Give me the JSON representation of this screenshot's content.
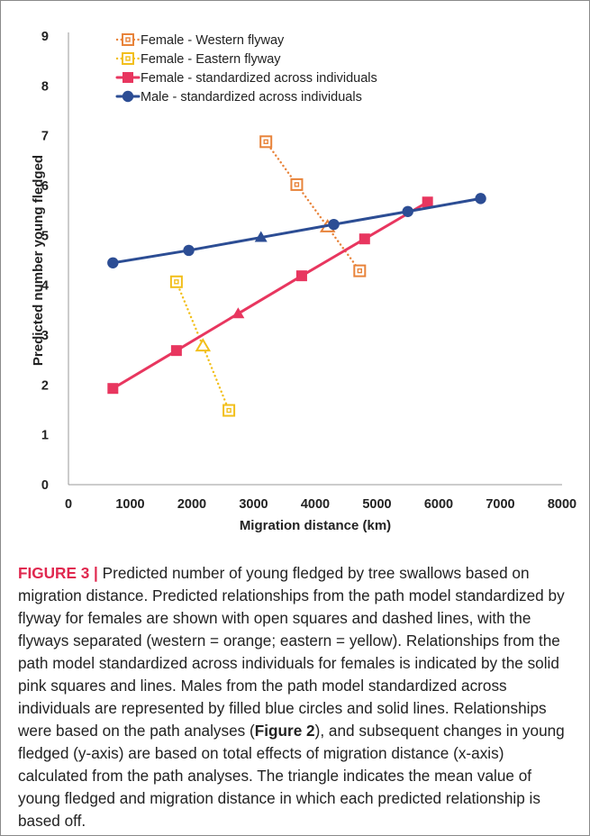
{
  "chart_data": {
    "type": "line",
    "xlabel": "Migration distance (km)",
    "ylabel": "Predicted number young fledged",
    "xlim": [
      0,
      8000
    ],
    "ylim": [
      0,
      9
    ],
    "xticks": [
      "0",
      "1000",
      "2000",
      "3000",
      "4000",
      "5000",
      "6000",
      "7000",
      "8000"
    ],
    "yticks": [
      "0",
      "1",
      "2",
      "3",
      "4",
      "5",
      "6",
      "7",
      "8",
      "9"
    ],
    "grid": false,
    "legend_position": "top-left",
    "series": [
      {
        "name": "Female - Western flyway",
        "color": "#e8833a",
        "marker": "open-square",
        "line": "dotted",
        "points": [
          {
            "x": 3200,
            "y": 6.88,
            "marker": "open-square"
          },
          {
            "x": 3700,
            "y": 6.02,
            "marker": "open-square"
          },
          {
            "x": 4200,
            "y": 5.17,
            "marker": "open-triangle"
          },
          {
            "x": 4720,
            "y": 4.29,
            "marker": "open-square"
          }
        ]
      },
      {
        "name": "Female - Eastern flyway",
        "color": "#f2bf1b",
        "marker": "open-square",
        "line": "dotted",
        "points": [
          {
            "x": 1750,
            "y": 4.07,
            "marker": "open-square"
          },
          {
            "x": 2180,
            "y": 2.78,
            "marker": "open-triangle"
          },
          {
            "x": 2600,
            "y": 1.49,
            "marker": "open-square"
          }
        ]
      },
      {
        "name": "Female - standardized across individuals",
        "color": "#e8365f",
        "marker": "filled-square",
        "line": "solid",
        "points": [
          {
            "x": 720,
            "y": 1.93,
            "marker": "filled-square"
          },
          {
            "x": 1750,
            "y": 2.69,
            "marker": "filled-square"
          },
          {
            "x": 2750,
            "y": 3.43,
            "marker": "filled-triangle"
          },
          {
            "x": 3780,
            "y": 4.19,
            "marker": "filled-square"
          },
          {
            "x": 4800,
            "y": 4.93,
            "marker": "filled-square"
          },
          {
            "x": 5820,
            "y": 5.67,
            "marker": "filled-square"
          }
        ]
      },
      {
        "name": "Male - standardized across individuals",
        "color": "#2c4d94",
        "marker": "filled-circle",
        "line": "solid",
        "points": [
          {
            "x": 720,
            "y": 4.45,
            "marker": "filled-circle"
          },
          {
            "x": 1950,
            "y": 4.7,
            "marker": "filled-circle"
          },
          {
            "x": 3120,
            "y": 4.96,
            "marker": "filled-triangle"
          },
          {
            "x": 4300,
            "y": 5.22,
            "marker": "filled-circle"
          },
          {
            "x": 5500,
            "y": 5.48,
            "marker": "filled-circle"
          },
          {
            "x": 6680,
            "y": 5.74,
            "marker": "filled-circle"
          }
        ]
      }
    ]
  },
  "caption": {
    "label": "FIGURE 3 |",
    "text_1": " Predicted number of young fledged by tree swallows based on migration distance. Predicted relationships from the path model standardized by flyway for females are shown with open squares and dashed lines, with the flyways separated (western = orange; eastern = yellow). Relationships from the path model standardized across individuals for females is indicated by the solid pink squares and lines. Males from the path model standardized across individuals are represented by filled blue circles and solid lines. Relationships were based on the path analyses (",
    "ref": "Figure 2",
    "text_2": "), and subsequent changes in young fledged (y-axis) are based on total effects of migration distance (x-axis) calculated from the path analyses. The triangle indicates the mean value of young fledged and migration distance in which each predicted relationship is based off."
  }
}
